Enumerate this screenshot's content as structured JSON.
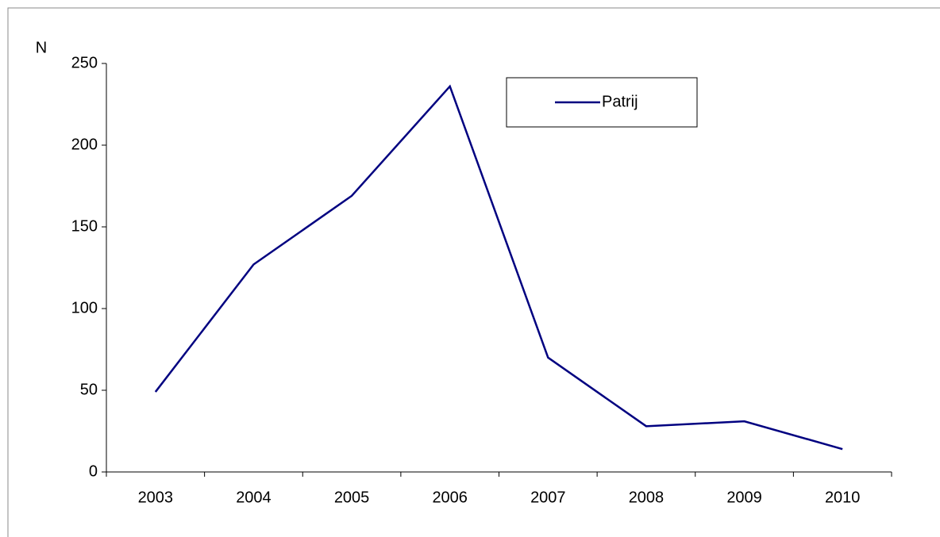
{
  "chart_data": {
    "type": "line",
    "y_label": "N",
    "categories": [
      "2003",
      "2004",
      "2005",
      "2006",
      "2007",
      "2008",
      "2009",
      "2010"
    ],
    "series": [
      {
        "name": "Patrij",
        "color": "#000080",
        "values": [
          49,
          127,
          169,
          236,
          70,
          28,
          31,
          14
        ]
      }
    ],
    "ylim": [
      0,
      250
    ],
    "yticks": [
      0,
      50,
      100,
      150,
      200,
      250
    ],
    "grid": false
  }
}
